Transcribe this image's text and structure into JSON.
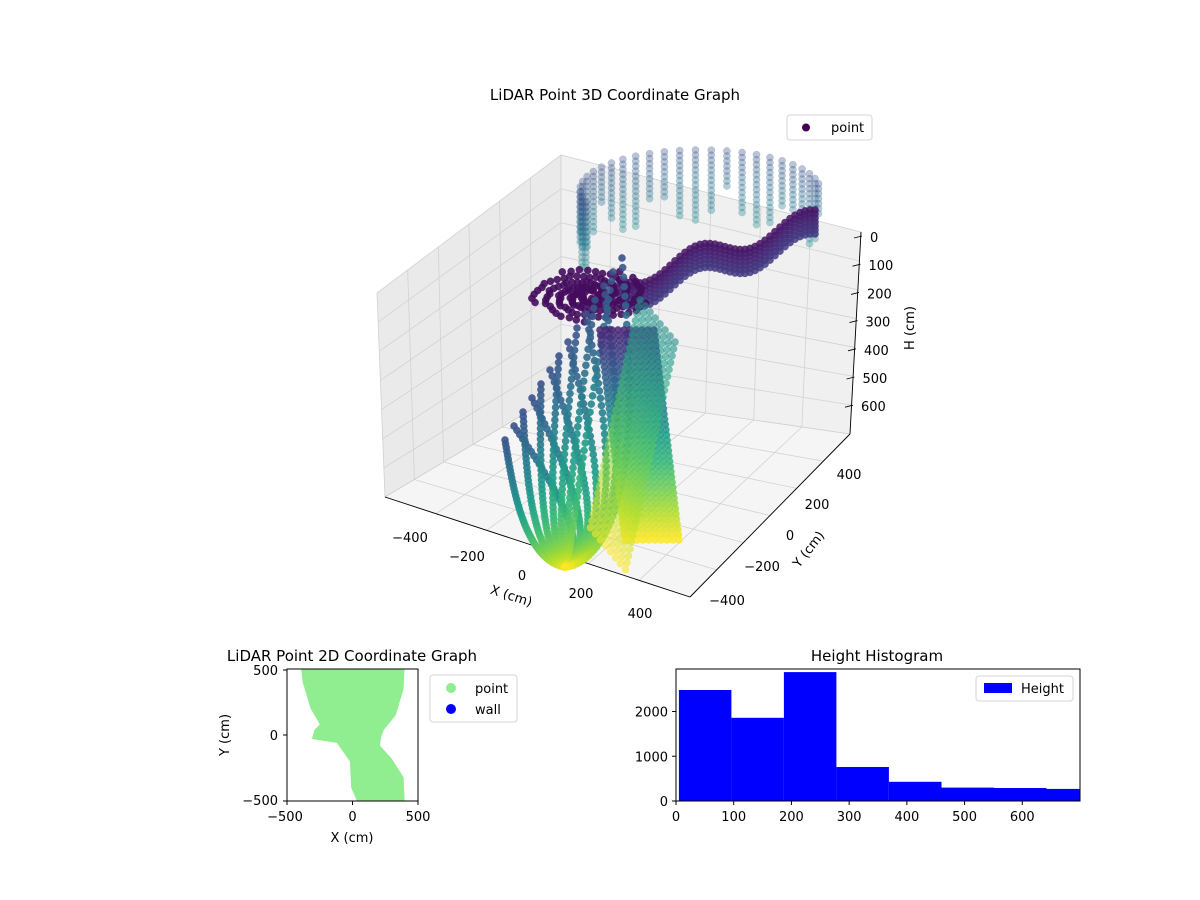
{
  "chart_data": [
    {
      "type": "scatter3d",
      "title": "LiDAR Point 3D Coordinate Graph",
      "xlabel": "X (cm)",
      "ylabel": "Y (cm)",
      "zlabel": "H (cm)",
      "xlim": [
        -500,
        500
      ],
      "ylim": [
        -500,
        500
      ],
      "zlim": [
        700,
        0
      ],
      "x_ticks": [
        "−400",
        "−200",
        "0",
        "200",
        "400"
      ],
      "y_ticks": [
        "−400",
        "−200",
        "0",
        "200",
        "400"
      ],
      "z_ticks": [
        "0",
        "100",
        "200",
        "300",
        "400",
        "500",
        "600"
      ],
      "grid": true,
      "colormap": "viridis",
      "legend": {
        "placement": "upper-right",
        "entries": [
          {
            "label": "point",
            "color": "#440154"
          }
        ]
      }
    },
    {
      "type": "scatter",
      "title": "LiDAR Point 2D Coordinate Graph",
      "xlabel": "X (cm)",
      "ylabel": "Y (cm)",
      "xlim": [
        -500,
        500
      ],
      "ylim": [
        -500,
        500
      ],
      "x_ticks": [
        "−500",
        "0",
        "500"
      ],
      "y_ticks": [
        "−500",
        "0",
        "500"
      ],
      "legend": {
        "placement": "outside-right",
        "entries": [
          {
            "label": "point",
            "color": "#90ee90"
          },
          {
            "label": "wall",
            "color": "#0000ff"
          }
        ]
      },
      "point_region": {
        "center_x": [
          -200,
          -120,
          30,
          240,
          310
        ],
        "half_width_top": 400,
        "neck_y": 0
      }
    },
    {
      "type": "histogram",
      "title": "Height Histogram",
      "xlim": [
        0,
        700
      ],
      "ylim": [
        0,
        2950
      ],
      "x_ticks": [
        "0",
        "100",
        "200",
        "300",
        "400",
        "500",
        "600"
      ],
      "y_ticks": [
        "0",
        "1000",
        "2000"
      ],
      "color": "#0000ff",
      "bins": [
        {
          "x0": 5,
          "x1": 96,
          "count": 2480
        },
        {
          "x0": 96,
          "x1": 187,
          "count": 1860
        },
        {
          "x0": 187,
          "x1": 278,
          "count": 2880
        },
        {
          "x0": 278,
          "x1": 369,
          "count": 760
        },
        {
          "x0": 369,
          "x1": 460,
          "count": 430
        },
        {
          "x0": 460,
          "x1": 551,
          "count": 300
        },
        {
          "x0": 551,
          "x1": 642,
          "count": 290
        },
        {
          "x0": 642,
          "x1": 700,
          "count": 270
        }
      ],
      "legend": {
        "placement": "upper-right",
        "entries": [
          {
            "label": "Height",
            "color": "#0000ff"
          }
        ]
      }
    }
  ]
}
